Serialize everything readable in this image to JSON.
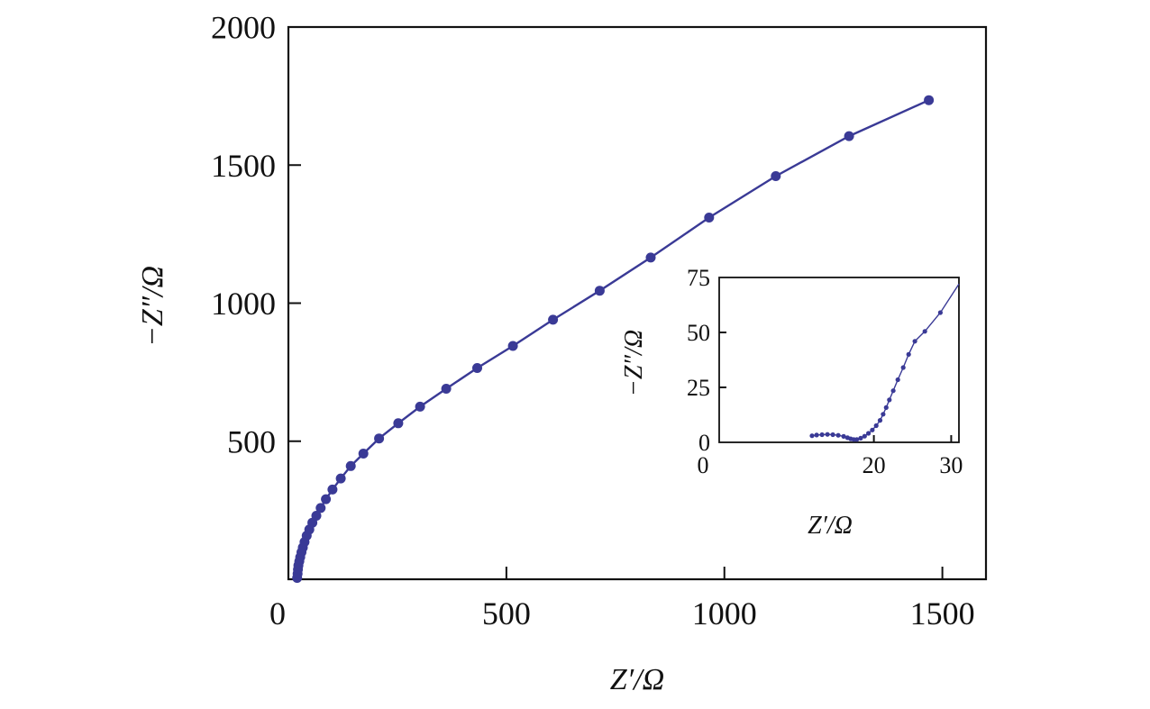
{
  "chart_data": [
    {
      "type": "line",
      "role": "main",
      "title": "",
      "xlabel": "Z′/Ω",
      "ylabel": "−Z″/Ω",
      "xlim": [
        0,
        1600
      ],
      "ylim": [
        0,
        2000
      ],
      "xticks": [
        0,
        500,
        1000,
        1500
      ],
      "yticks": [
        500,
        1000,
        1500,
        2000
      ],
      "xtick_labels": [
        "0",
        "500",
        "1000",
        "1500"
      ],
      "ytick_labels": [
        "500",
        "1000",
        "1500",
        "2000"
      ],
      "grid": false,
      "legend": "none",
      "color": "#3a3a96",
      "series": [
        {
          "marker": "circle",
          "x": [
            20,
            21,
            22,
            23,
            25,
            27,
            30,
            33,
            37,
            42,
            48,
            55,
            64,
            74,
            86,
            101,
            120,
            143,
            172,
            208,
            252,
            302,
            362,
            433,
            515,
            607,
            714,
            831,
            965,
            1118,
            1286,
            1469
          ],
          "y": [
            5,
            20,
            35,
            50,
            65,
            80,
            98,
            115,
            135,
            158,
            180,
            205,
            230,
            258,
            290,
            325,
            365,
            410,
            455,
            510,
            565,
            625,
            690,
            765,
            845,
            940,
            1045,
            1165,
            1310,
            1460,
            1605,
            1735
          ]
        }
      ]
    },
    {
      "type": "line",
      "role": "inset",
      "title": "",
      "xlabel": "Z′/Ω",
      "ylabel": "−Z″/Ω",
      "xlim": [
        0,
        31
      ],
      "ylim": [
        0,
        75
      ],
      "xticks": [
        0,
        20,
        30
      ],
      "yticks": [
        0,
        25,
        50,
        75
      ],
      "xtick_labels": [
        "0",
        "20",
        "30"
      ],
      "ytick_labels": [
        "0",
        "25",
        "50",
        "75"
      ],
      "grid": false,
      "legend": "none",
      "color": "#3a3a96",
      "series": [
        {
          "marker": "circle",
          "x": [
            12,
            12.6,
            13.3,
            14,
            14.7,
            15.4,
            16.1,
            16.6,
            17.0,
            17.4,
            17.8,
            18.3,
            18.8,
            19.3,
            19.8,
            20.3,
            20.8,
            21.2,
            21.6,
            22.0,
            22.5,
            23.1,
            23.8,
            24.5,
            25.3,
            26.6,
            28.6
          ],
          "y": [
            3,
            3.3,
            3.5,
            3.6,
            3.5,
            3.2,
            2.7,
            2.1,
            1.6,
            1.3,
            1.3,
            1.9,
            2.8,
            4.1,
            5.6,
            7.6,
            10,
            12.8,
            15.8,
            19.3,
            23.5,
            28.5,
            34,
            40,
            46,
            50.5,
            59
          ]
        }
      ],
      "fit_line_end": [
        31,
        72
      ]
    }
  ]
}
